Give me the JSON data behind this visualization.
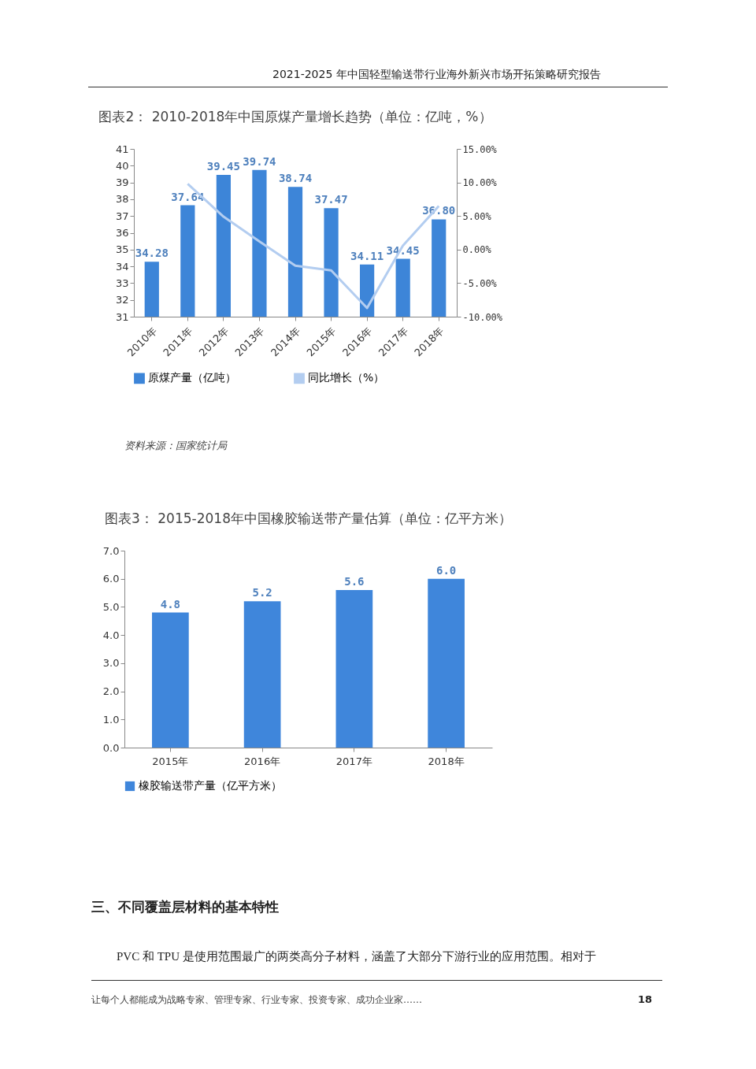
{
  "chart_data": [
    {
      "type": "bar",
      "title": "图表2： 2010-2018年中国原煤产量增长趋势（单位：亿吨，%）",
      "categories": [
        "2010年",
        "2011年",
        "2012年",
        "2013年",
        "2014年",
        "2015年",
        "2016年",
        "2017年",
        "2018年"
      ],
      "series": [
        {
          "name": "原煤产量（亿吨）",
          "type": "bar",
          "color": "#3d85d8",
          "values": [
            34.28,
            37.64,
            39.45,
            39.74,
            38.74,
            37.47,
            34.11,
            34.45,
            36.8
          ],
          "value_labels": [
            "34.28",
            "37.64",
            "39.45",
            "39.74",
            "38.74",
            "37.47",
            "34.11",
            "34.45",
            "36.80"
          ]
        },
        {
          "name": "同比增长（%）",
          "type": "line",
          "axis": "y2",
          "color": "#b3cdf0",
          "values": [
            null,
            9.8,
            4.9,
            1.2,
            -2.4,
            -3.1,
            -8.7,
            0.6,
            6.5
          ]
        }
      ],
      "ylim": [
        31,
        41
      ],
      "yticks": [
        31,
        32,
        33,
        34,
        35,
        36,
        37,
        38,
        39,
        40,
        41
      ],
      "y2lim": [
        -10,
        15
      ],
      "y2ticks": [
        {
          "value": -10,
          "label": "-10.00%"
        },
        {
          "value": -5,
          "label": "-5.00%"
        },
        {
          "value": 0,
          "label": "0.00%"
        },
        {
          "value": 5,
          "label": "5.00%"
        },
        {
          "value": 10,
          "label": "10.00%"
        },
        {
          "value": 15,
          "label": "15.00%"
        }
      ],
      "legend": "bottom",
      "grid": false,
      "annotations": [
        "2021-2025 年中国轻型输送带行业海外新兴市场开拓策略研究报告",
        "资料来源：国家统计局"
      ]
    },
    {
      "type": "bar",
      "title": "图表3： 2015-2018年中国橡胶输送带产量估算（单位：亿平方米）",
      "categories": [
        "2015年",
        "2016年",
        "2017年",
        "2018年"
      ],
      "series": [
        {
          "name": "橡胶输送带产量（亿平方米）",
          "color": "#3f86db",
          "values": [
            4.8,
            5.2,
            5.6,
            6.0
          ],
          "value_labels": [
            "4.8",
            "5.2",
            "5.6",
            "6.0"
          ]
        }
      ],
      "ylim": [
        0,
        7
      ],
      "yticks": [
        {
          "value": 0,
          "label": "0.0"
        },
        {
          "value": 1,
          "label": "1.0"
        },
        {
          "value": 2,
          "label": "2.0"
        },
        {
          "value": 3,
          "label": "3.0"
        },
        {
          "value": 4,
          "label": "4.0"
        },
        {
          "value": 5,
          "label": "5.0"
        },
        {
          "value": 6,
          "label": "6.0"
        },
        {
          "value": 7,
          "label": "7.0"
        }
      ],
      "legend": "bottom",
      "grid": false,
      "annotations": [
        "三、不同覆盖层材料的基本特性",
        "PVC 和 TPU 是使用范围最广的两类高分子材料，涵盖了大部分下游行业的应用范围。相对于",
        "让每个人都能成为战略专家、管理专家、行业专家、投资专家、成功企业家……",
        "18"
      ]
    }
  ]
}
